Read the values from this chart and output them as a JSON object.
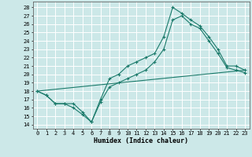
{
  "xlabel": "Humidex (Indice chaleur)",
  "bg_color": "#cce8e8",
  "line_color": "#1a7a6a",
  "grid_color": "#ffffff",
  "xlim": [
    -0.5,
    23.5
  ],
  "ylim": [
    13.5,
    28.7
  ],
  "yticks": [
    14,
    15,
    16,
    17,
    18,
    19,
    20,
    21,
    22,
    23,
    24,
    25,
    26,
    27,
    28
  ],
  "xticks": [
    0,
    1,
    2,
    3,
    4,
    5,
    6,
    7,
    8,
    9,
    10,
    11,
    12,
    13,
    14,
    15,
    16,
    17,
    18,
    19,
    20,
    21,
    22,
    23
  ],
  "line1_x": [
    0,
    1,
    2,
    3,
    4,
    5,
    6,
    7,
    8,
    9,
    10,
    11,
    12,
    13,
    14,
    15,
    16,
    17,
    18,
    19,
    20,
    21,
    22,
    23
  ],
  "line1_y": [
    18,
    17.5,
    16.5,
    16.5,
    16.5,
    15.5,
    14.3,
    17,
    19.5,
    20,
    21,
    21.5,
    22,
    22.5,
    24.5,
    28,
    27.3,
    26.5,
    25.8,
    24.5,
    23,
    21,
    21,
    20.5
  ],
  "line2_x": [
    0,
    1,
    2,
    3,
    4,
    5,
    6,
    7,
    8,
    9,
    10,
    11,
    12,
    13,
    14,
    15,
    16,
    17,
    18,
    19,
    20,
    21,
    22,
    23
  ],
  "line2_y": [
    18,
    17.5,
    16.5,
    16.5,
    16,
    15.2,
    14.3,
    16.7,
    18.5,
    19,
    19.5,
    20,
    20.5,
    21.5,
    23,
    26.5,
    27,
    26,
    25.5,
    24,
    22.5,
    20.8,
    20.5,
    20.2
  ],
  "line3_x": [
    0,
    23
  ],
  "line3_y": [
    18,
    20.5
  ]
}
